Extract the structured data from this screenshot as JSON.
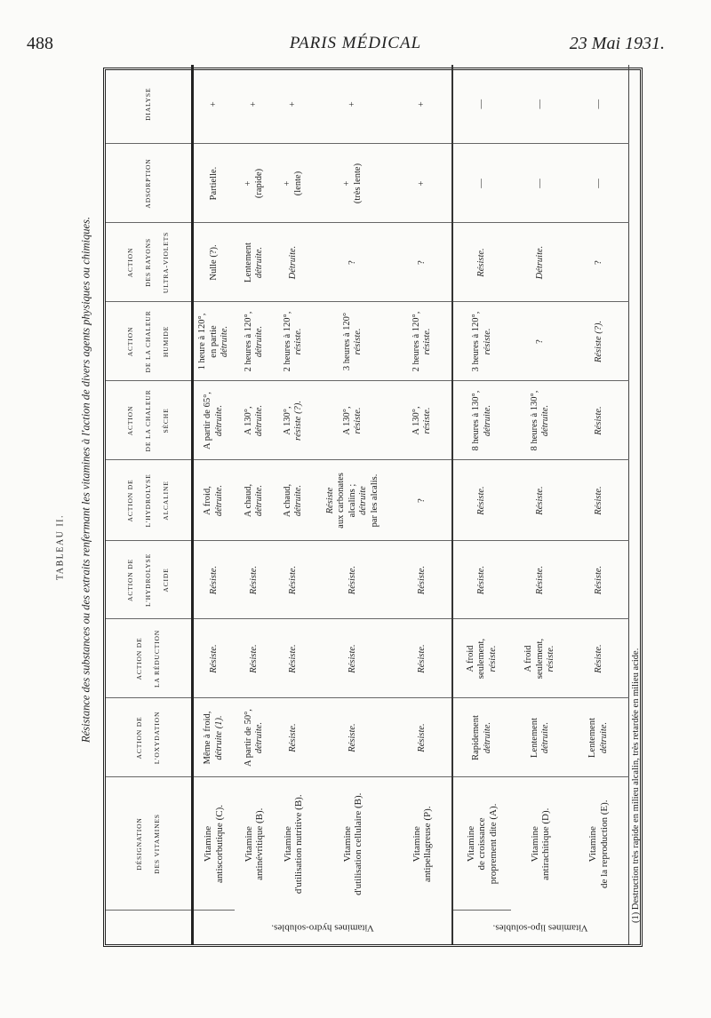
{
  "page": {
    "number": "488",
    "journal": "PARIS MÉDICAL",
    "date": "23 Mai 1931."
  },
  "table": {
    "title": "TABLEAU II.",
    "caption": "Résistance des substances ou des extraits renfermant les vitamines à l'action de divers agents physiques ou chimiques.",
    "columns": [
      [
        "DÉSIGNATION",
        "DES VITAMINES"
      ],
      [
        "ACTION DE",
        "L'OXYDATION"
      ],
      [
        "ACTION DE",
        "LA RÉDUCTION"
      ],
      [
        "ACTION DE",
        "L'HYDROLYSE",
        "ACIDE"
      ],
      [
        "ACTION DE",
        "L'HYDROLYSE",
        "ALCALINE"
      ],
      [
        "ACTION",
        "DE LA CHALEUR",
        "SÈCHE"
      ],
      [
        "ACTION",
        "DE LA CHALEUR",
        "HUMIDE"
      ],
      [
        "ACTION",
        "DES RAYONS",
        "ULTRA-VIOLETS"
      ],
      [
        "ADSORPTION"
      ],
      [
        "DIALYSE"
      ]
    ],
    "groups": [
      {
        "label": "Vitamines hydro-solubles.",
        "rows": [
          [
            [
              [
                "Vitamine",
                0
              ],
              [
                "antiscorbutique (C).",
                0
              ]
            ],
            [
              [
                "Même à froid,",
                0
              ],
              [
                "détruite (1).",
                1
              ]
            ],
            [
              [
                "Résiste.",
                1
              ]
            ],
            [
              [
                "Résiste.",
                1
              ]
            ],
            [
              [
                "A froid,",
                0
              ],
              [
                "détruite.",
                1
              ]
            ],
            [
              [
                "A partir de 65°,",
                0
              ],
              [
                "détruite.",
                1
              ]
            ],
            [
              [
                "1 heure à 120°,",
                0
              ],
              [
                "en partie",
                0
              ],
              [
                "détruite.",
                1
              ]
            ],
            [
              [
                "Nulle (?).",
                0
              ]
            ],
            [
              [
                "Partielle.",
                0
              ]
            ],
            [
              [
                "+",
                0
              ]
            ]
          ],
          [
            [
              [
                "Vitamine",
                0
              ],
              [
                "antinévritique (B).",
                0
              ]
            ],
            [
              [
                "A partir de 50°,",
                0
              ],
              [
                "détruite.",
                1
              ]
            ],
            [
              [
                "Résiste.",
                1
              ]
            ],
            [
              [
                "Résiste.",
                1
              ]
            ],
            [
              [
                "A chaud,",
                0
              ],
              [
                "détruite.",
                1
              ]
            ],
            [
              [
                "A 130°,",
                0
              ],
              [
                "détruite.",
                1
              ]
            ],
            [
              [
                "2 heures à 120°,",
                0
              ],
              [
                "détruite.",
                1
              ]
            ],
            [
              [
                "Lentement",
                0
              ],
              [
                "détruite.",
                1
              ]
            ],
            [
              [
                "+",
                0
              ],
              [
                "(rapide)",
                0
              ]
            ],
            [
              [
                "+",
                0
              ]
            ]
          ],
          [
            [
              [
                "Vitamine",
                0
              ],
              [
                "d'utilisation nutritive (B).",
                0
              ]
            ],
            [
              [
                "Résiste.",
                1
              ]
            ],
            [
              [
                "Résiste.",
                1
              ]
            ],
            [
              [
                "Résiste.",
                1
              ]
            ],
            [
              [
                "A chaud,",
                0
              ],
              [
                "détruite.",
                1
              ]
            ],
            [
              [
                "A 130°,",
                0
              ],
              [
                "résiste (?).",
                1
              ]
            ],
            [
              [
                "2 heures à 120°,",
                0
              ],
              [
                "résiste.",
                1
              ]
            ],
            [
              [
                "Détruite.",
                1
              ]
            ],
            [
              [
                "+",
                0
              ],
              [
                "(lente)",
                0
              ]
            ],
            [
              [
                "+",
                0
              ]
            ]
          ],
          [
            [
              [
                "Vitamine",
                0
              ],
              [
                "d'utilisation cellulaire (B).",
                0
              ]
            ],
            [
              [
                "Résiste.",
                1
              ]
            ],
            [
              [
                "Résiste.",
                1
              ]
            ],
            [
              [
                "Résiste.",
                1
              ]
            ],
            [
              [
                "Résiste",
                1
              ],
              [
                "aux carbonates",
                0
              ],
              [
                "alcalins ;",
                0
              ],
              [
                "détruite",
                1
              ],
              [
                "par les alcalis.",
                0
              ]
            ],
            [
              [
                "A 130°,",
                0
              ],
              [
                "résiste.",
                1
              ]
            ],
            [
              [
                "3 heures à 120°",
                0
              ],
              [
                "résiste.",
                1
              ]
            ],
            [
              [
                "?",
                0
              ]
            ],
            [
              [
                "+",
                0
              ],
              [
                "(très lente)",
                0
              ]
            ],
            [
              [
                "+",
                0
              ]
            ]
          ],
          [
            [
              [
                "Vitamine",
                0
              ],
              [
                "antipellagreuse (P).",
                0
              ]
            ],
            [
              [
                "Résiste.",
                1
              ]
            ],
            [
              [
                "Résiste.",
                1
              ]
            ],
            [
              [
                "Résiste.",
                1
              ]
            ],
            [
              [
                "?",
                0
              ]
            ],
            [
              [
                "A 130°,",
                0
              ],
              [
                "résiste.",
                1
              ]
            ],
            [
              [
                "2 heures à 120°,",
                0
              ],
              [
                "résiste.",
                1
              ]
            ],
            [
              [
                "?",
                0
              ]
            ],
            [
              [
                "+",
                0
              ]
            ],
            [
              [
                "+",
                0
              ]
            ]
          ]
        ]
      },
      {
        "label": "Vitamines lipo-solubles.",
        "rows": [
          [
            [
              [
                "Vitamine",
                0
              ],
              [
                "de croissance",
                0
              ],
              [
                "proprement dite (A).",
                0
              ]
            ],
            [
              [
                "Rapidement",
                0
              ],
              [
                "détruite.",
                1
              ]
            ],
            [
              [
                "A froid",
                0
              ],
              [
                "seulement,",
                0
              ],
              [
                "résiste.",
                1
              ]
            ],
            [
              [
                "Résiste.",
                1
              ]
            ],
            [
              [
                "Résiste.",
                1
              ]
            ],
            [
              [
                "8 heures à 130°,",
                0
              ],
              [
                "détruite.",
                1
              ]
            ],
            [
              [
                "3 heures à 120°,",
                0
              ],
              [
                "résiste.",
                1
              ]
            ],
            [
              [
                "Résiste.",
                1
              ]
            ],
            [
              [
                "—",
                0
              ]
            ],
            [
              [
                "—",
                0
              ]
            ]
          ],
          [
            [
              [
                "Vitamine",
                0
              ],
              [
                "antirachitique (D).",
                0
              ]
            ],
            [
              [
                "Lentement",
                0
              ],
              [
                "détruite.",
                1
              ]
            ],
            [
              [
                "A froid",
                0
              ],
              [
                "seulement,",
                0
              ],
              [
                "résiste.",
                1
              ]
            ],
            [
              [
                "Résiste.",
                1
              ]
            ],
            [
              [
                "Résiste.",
                1
              ]
            ],
            [
              [
                "8 heures à 130°,",
                0
              ],
              [
                "détruite.",
                1
              ]
            ],
            [
              [
                "?",
                0
              ]
            ],
            [
              [
                "Détruite.",
                1
              ]
            ],
            [
              [
                "—",
                0
              ]
            ],
            [
              [
                "—",
                0
              ]
            ]
          ],
          [
            [
              [
                "Vitamine",
                0
              ],
              [
                "de la reproduction (E).",
                0
              ]
            ],
            [
              [
                "Lentement",
                0
              ],
              [
                "détruite.",
                1
              ]
            ],
            [
              [
                "Résiste.",
                1
              ]
            ],
            [
              [
                "Résiste.",
                1
              ]
            ],
            [
              [
                "Résiste.",
                1
              ]
            ],
            [
              [
                "Résiste.",
                1
              ]
            ],
            [
              [
                "Résiste (?).",
                1
              ]
            ],
            [
              [
                "?",
                0
              ]
            ],
            [
              [
                "—",
                0
              ]
            ],
            [
              [
                "—",
                0
              ]
            ]
          ]
        ]
      }
    ],
    "footnote": "(1) Destruction très rapide en milieu alcalin, très retardée en milieu acide."
  }
}
